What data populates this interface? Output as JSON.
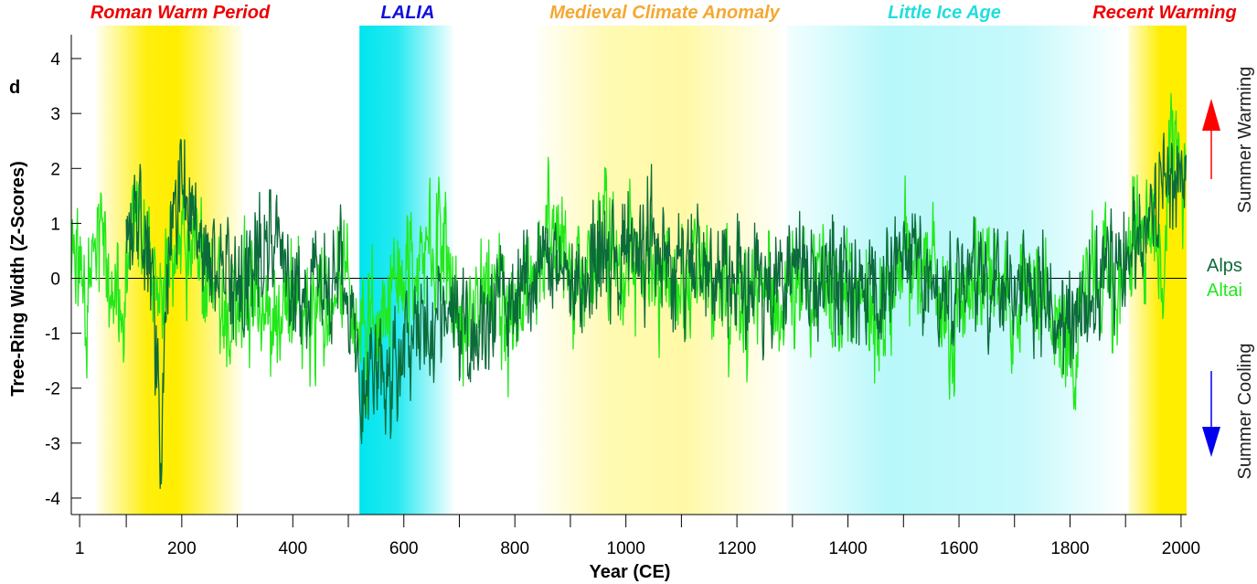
{
  "panel_letter": "d",
  "colors": {
    "alps": "#0c6b3a",
    "altai": "#22e81a",
    "warm_band": "#ffee00",
    "cold_band": "#00e5ee",
    "label_red": "#ee0000",
    "label_blue": "#1010dd",
    "label_orange": "#f5a830",
    "label_cyan": "#22dddd",
    "arrow_up": "#ff0000",
    "arrow_down": "#0000ee"
  },
  "chart_data": {
    "type": "line",
    "xlabel": "Year (CE)",
    "ylabel": "Tree-Ring Width (Z-Scores)",
    "xlim": [
      1,
      2010
    ],
    "ylim": [
      -4.3,
      4.6
    ],
    "x_ticks": [
      1,
      200,
      400,
      600,
      800,
      1000,
      1200,
      1400,
      1600,
      1800,
      2000
    ],
    "x_minor_ticks": [
      100,
      300,
      500,
      700,
      900,
      1100,
      1300,
      1500,
      1700,
      1900
    ],
    "y_ticks": [
      -4,
      -3,
      -2,
      -1,
      0,
      1,
      2,
      3,
      4
    ],
    "reference_line": 0,
    "periods": [
      {
        "name": "Roman Warm Period",
        "start": 45,
        "end": 310,
        "kind": "warm"
      },
      {
        "name": "LALIA",
        "start": 520,
        "end": 690,
        "kind": "cold"
      },
      {
        "name": "Medieval Climate Anomaly",
        "start": 830,
        "end": 1290,
        "kind": "warm-light"
      },
      {
        "name": "Little Ice Age",
        "start": 1290,
        "end": 1900,
        "kind": "cold-light"
      },
      {
        "name": "Recent Warming",
        "start": 1905,
        "end": 2010,
        "kind": "warm"
      }
    ],
    "side_labels": {
      "top": "Summer Warming",
      "bottom": "Summer Cooling"
    },
    "series": [
      {
        "name": "Alps",
        "start_year": 100,
        "anchors": [
          [
            100,
            1.0
          ],
          [
            120,
            0.9
          ],
          [
            140,
            0.6
          ],
          [
            150,
            -0.4
          ],
          [
            158,
            -2.6
          ],
          [
            162,
            -3.5
          ],
          [
            168,
            -1.2
          ],
          [
            180,
            1.0
          ],
          [
            200,
            1.6
          ],
          [
            220,
            1.2
          ],
          [
            240,
            0.6
          ],
          [
            260,
            0.1
          ],
          [
            280,
            0.2
          ],
          [
            300,
            -0.4
          ],
          [
            320,
            0.2
          ],
          [
            340,
            0.3
          ],
          [
            360,
            0.9
          ],
          [
            380,
            0.5
          ],
          [
            400,
            -0.1
          ],
          [
            420,
            -0.4
          ],
          [
            440,
            0.1
          ],
          [
            460,
            -0.2
          ],
          [
            480,
            0.0
          ],
          [
            495,
            -0.4
          ],
          [
            505,
            -0.6
          ],
          [
            515,
            -1.2
          ],
          [
            522,
            -2.6
          ],
          [
            530,
            -2.2
          ],
          [
            545,
            -1.6
          ],
          [
            560,
            -1.3
          ],
          [
            580,
            -1.8
          ],
          [
            600,
            -1.5
          ],
          [
            620,
            -1.0
          ],
          [
            640,
            -0.8
          ],
          [
            660,
            -0.9
          ],
          [
            680,
            -0.8
          ],
          [
            700,
            -0.6
          ],
          [
            720,
            -1.0
          ],
          [
            740,
            -0.8
          ],
          [
            760,
            -0.5
          ],
          [
            780,
            -0.3
          ],
          [
            800,
            -0.4
          ],
          [
            820,
            -0.3
          ],
          [
            840,
            0.0
          ],
          [
            860,
            0.3
          ],
          [
            880,
            0.4
          ],
          [
            900,
            0.2
          ],
          [
            920,
            -0.1
          ],
          [
            940,
            0.0
          ],
          [
            960,
            0.4
          ],
          [
            980,
            0.3
          ],
          [
            1000,
            0.5
          ],
          [
            1020,
            0.4
          ],
          [
            1040,
            0.5
          ],
          [
            1060,
            0.3
          ],
          [
            1080,
            0.1
          ],
          [
            1100,
            0.2
          ],
          [
            1120,
            0.3
          ],
          [
            1140,
            0.1
          ],
          [
            1160,
            -0.2
          ],
          [
            1180,
            0.0
          ],
          [
            1200,
            0.1
          ],
          [
            1220,
            -0.2
          ],
          [
            1240,
            0.1
          ],
          [
            1260,
            -0.3
          ],
          [
            1280,
            -0.1
          ],
          [
            1300,
            0.0
          ],
          [
            1320,
            -0.1
          ],
          [
            1340,
            -0.2
          ],
          [
            1360,
            0.1
          ],
          [
            1380,
            -0.1
          ],
          [
            1400,
            -0.2
          ],
          [
            1420,
            -0.3
          ],
          [
            1440,
            -0.4
          ],
          [
            1460,
            -0.3
          ],
          [
            1480,
            0.2
          ],
          [
            1500,
            0.4
          ],
          [
            1520,
            0.3
          ],
          [
            1540,
            -0.1
          ],
          [
            1560,
            -0.3
          ],
          [
            1580,
            -0.4
          ],
          [
            1600,
            -0.2
          ],
          [
            1620,
            0.0
          ],
          [
            1640,
            -0.1
          ],
          [
            1660,
            -0.2
          ],
          [
            1680,
            -0.4
          ],
          [
            1700,
            -0.1
          ],
          [
            1720,
            -0.2
          ],
          [
            1740,
            -0.3
          ],
          [
            1760,
            -0.5
          ],
          [
            1780,
            -0.7
          ],
          [
            1800,
            -0.9
          ],
          [
            1820,
            -0.6
          ],
          [
            1840,
            -0.3
          ],
          [
            1860,
            -0.1
          ],
          [
            1880,
            0.1
          ],
          [
            1900,
            0.3
          ],
          [
            1920,
            0.8
          ],
          [
            1940,
            1.2
          ],
          [
            1960,
            1.3
          ],
          [
            1980,
            1.4
          ],
          [
            1990,
            1.9
          ],
          [
            2000,
            1.8
          ],
          [
            2010,
            1.6
          ]
        ]
      },
      {
        "name": "Altai",
        "start_year": 1,
        "anchors": [
          [
            1,
            0.2
          ],
          [
            10,
            0.5
          ],
          [
            20,
            -0.4
          ],
          [
            30,
            -1.0
          ],
          [
            40,
            0.4
          ],
          [
            50,
            1.1
          ],
          [
            60,
            0.4
          ],
          [
            70,
            -0.3
          ],
          [
            80,
            -0.6
          ],
          [
            90,
            -0.4
          ],
          [
            100,
            0.4
          ],
          [
            120,
            0.7
          ],
          [
            140,
            0.2
          ],
          [
            160,
            -0.4
          ],
          [
            180,
            0.4
          ],
          [
            200,
            0.8
          ],
          [
            220,
            0.5
          ],
          [
            240,
            0.3
          ],
          [
            260,
            -0.1
          ],
          [
            280,
            -0.5
          ],
          [
            300,
            -0.4
          ],
          [
            320,
            -0.5
          ],
          [
            340,
            -0.3
          ],
          [
            360,
            -0.6
          ],
          [
            380,
            -0.4
          ],
          [
            400,
            -0.6
          ],
          [
            420,
            -0.5
          ],
          [
            440,
            -0.4
          ],
          [
            460,
            -0.7
          ],
          [
            480,
            -0.3
          ],
          [
            500,
            0.1
          ],
          [
            510,
            -0.6
          ],
          [
            520,
            -1.4
          ],
          [
            540,
            -0.8
          ],
          [
            560,
            -0.6
          ],
          [
            580,
            -0.2
          ],
          [
            600,
            0.1
          ],
          [
            620,
            0.2
          ],
          [
            640,
            0.8
          ],
          [
            660,
            0.5
          ],
          [
            680,
            0.3
          ],
          [
            700,
            -0.4
          ],
          [
            720,
            -0.6
          ],
          [
            740,
            -0.6
          ],
          [
            760,
            -0.4
          ],
          [
            780,
            -0.6
          ],
          [
            800,
            -0.7
          ],
          [
            820,
            -0.3
          ],
          [
            840,
            0.1
          ],
          [
            860,
            0.8
          ],
          [
            880,
            0.5
          ],
          [
            900,
            0.2
          ],
          [
            920,
            0.0
          ],
          [
            940,
            0.2
          ],
          [
            960,
            0.6
          ],
          [
            980,
            0.3
          ],
          [
            1000,
            0.3
          ],
          [
            1020,
            0.1
          ],
          [
            1040,
            0.0
          ],
          [
            1060,
            0.2
          ],
          [
            1080,
            0.0
          ],
          [
            1100,
            -0.1
          ],
          [
            1120,
            0.2
          ],
          [
            1140,
            0.4
          ],
          [
            1160,
            0.0
          ],
          [
            1180,
            -0.2
          ],
          [
            1200,
            -0.4
          ],
          [
            1220,
            -0.6
          ],
          [
            1240,
            -0.5
          ],
          [
            1260,
            -0.3
          ],
          [
            1280,
            -0.8
          ],
          [
            1300,
            -0.3
          ],
          [
            1320,
            -0.2
          ],
          [
            1340,
            -0.5
          ],
          [
            1360,
            -0.3
          ],
          [
            1380,
            -0.6
          ],
          [
            1400,
            -0.2
          ],
          [
            1420,
            -0.4
          ],
          [
            1440,
            -0.3
          ],
          [
            1450,
            -0.9
          ],
          [
            1460,
            -0.5
          ],
          [
            1480,
            0.1
          ],
          [
            1500,
            0.3
          ],
          [
            1520,
            0.1
          ],
          [
            1540,
            0.4
          ],
          [
            1560,
            0.0
          ],
          [
            1580,
            -0.6
          ],
          [
            1590,
            -1.3
          ],
          [
            1600,
            -0.4
          ],
          [
            1620,
            -0.2
          ],
          [
            1640,
            -0.3
          ],
          [
            1660,
            0.0
          ],
          [
            1680,
            -0.3
          ],
          [
            1700,
            -0.5
          ],
          [
            1720,
            -0.2
          ],
          [
            1740,
            -0.4
          ],
          [
            1760,
            -0.5
          ],
          [
            1780,
            -0.8
          ],
          [
            1800,
            -1.0
          ],
          [
            1810,
            -1.6
          ],
          [
            1820,
            -0.4
          ],
          [
            1840,
            0.0
          ],
          [
            1860,
            -0.2
          ],
          [
            1880,
            0.0
          ],
          [
            1900,
            0.1
          ],
          [
            1920,
            0.8
          ],
          [
            1940,
            1.1
          ],
          [
            1960,
            0.4
          ],
          [
            1965,
            -1.0
          ],
          [
            1970,
            0.5
          ],
          [
            1980,
            1.9
          ],
          [
            1990,
            3.0
          ],
          [
            2000,
            2.0
          ],
          [
            2010,
            1.5
          ]
        ]
      }
    ]
  }
}
